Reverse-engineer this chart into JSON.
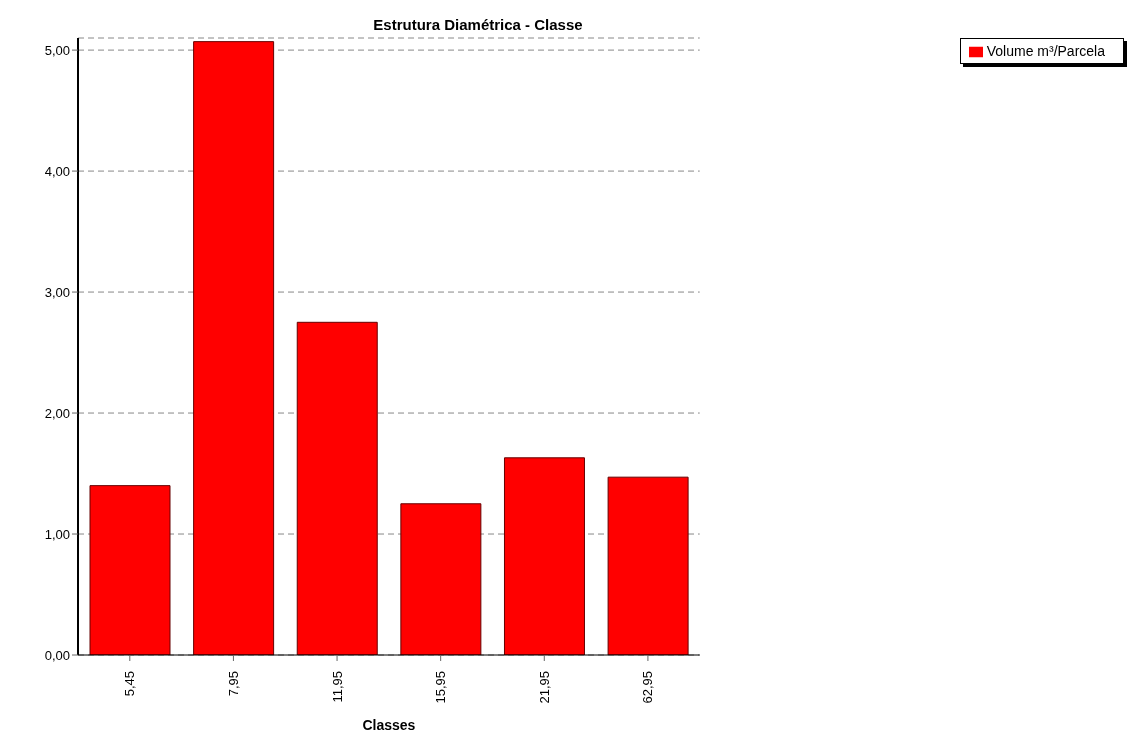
{
  "chart_data": {
    "type": "bar",
    "title": "Estrutura Diamétrica - Classe",
    "xlabel": "Classes",
    "categories": [
      "5,45",
      "7,95",
      "11,95",
      "15,95",
      "21,95",
      "62,95"
    ],
    "series": [
      {
        "name": "Volume m³/Parcela",
        "color": "#ff0000",
        "values": [
          1.4,
          5.07,
          2.75,
          1.25,
          1.63,
          1.47
        ]
      }
    ],
    "ylim": [
      0,
      5.1
    ],
    "yticks": [
      {
        "value": 0,
        "label": "0,00"
      },
      {
        "value": 1,
        "label": "1,00"
      },
      {
        "value": 2,
        "label": "2,00"
      },
      {
        "value": 3,
        "label": "3,00"
      },
      {
        "value": 4,
        "label": "4,00"
      },
      {
        "value": 5,
        "label": "5,00"
      }
    ],
    "grid": "y",
    "legend": "top right"
  }
}
